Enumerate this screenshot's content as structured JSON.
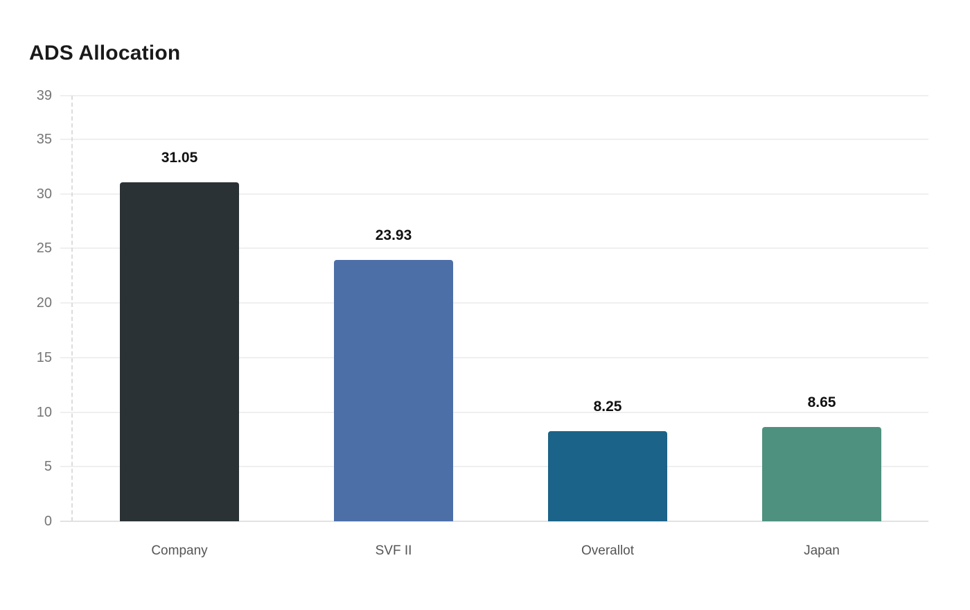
{
  "chart_data": {
    "type": "bar",
    "title": "ADS Allocation",
    "categories": [
      "Company",
      "SVF II",
      "Overallot",
      "Japan"
    ],
    "values": [
      31.05,
      23.93,
      8.25,
      8.65
    ],
    "value_labels": [
      "31.05",
      "23.93",
      "8.25",
      "8.65"
    ],
    "bar_colors": [
      "#2b3236",
      "#4d6fa8",
      "#1b6388",
      "#4e917f"
    ],
    "yticks": [
      0,
      5,
      10,
      15,
      20,
      25,
      30,
      35,
      39
    ],
    "ylim": [
      0,
      39
    ],
    "xlabel": "",
    "ylabel": "",
    "grid": "horizontal",
    "legend_position": "none",
    "colors": {
      "title": "#1a1a1a",
      "grid_line": "#efefef",
      "baseline": "#e2e2e2",
      "axis_dashed_line": "#dcdcdc",
      "tick_label": "#757575",
      "category_label": "#555555",
      "value_label": "#111111",
      "background": "#ffffff"
    }
  }
}
